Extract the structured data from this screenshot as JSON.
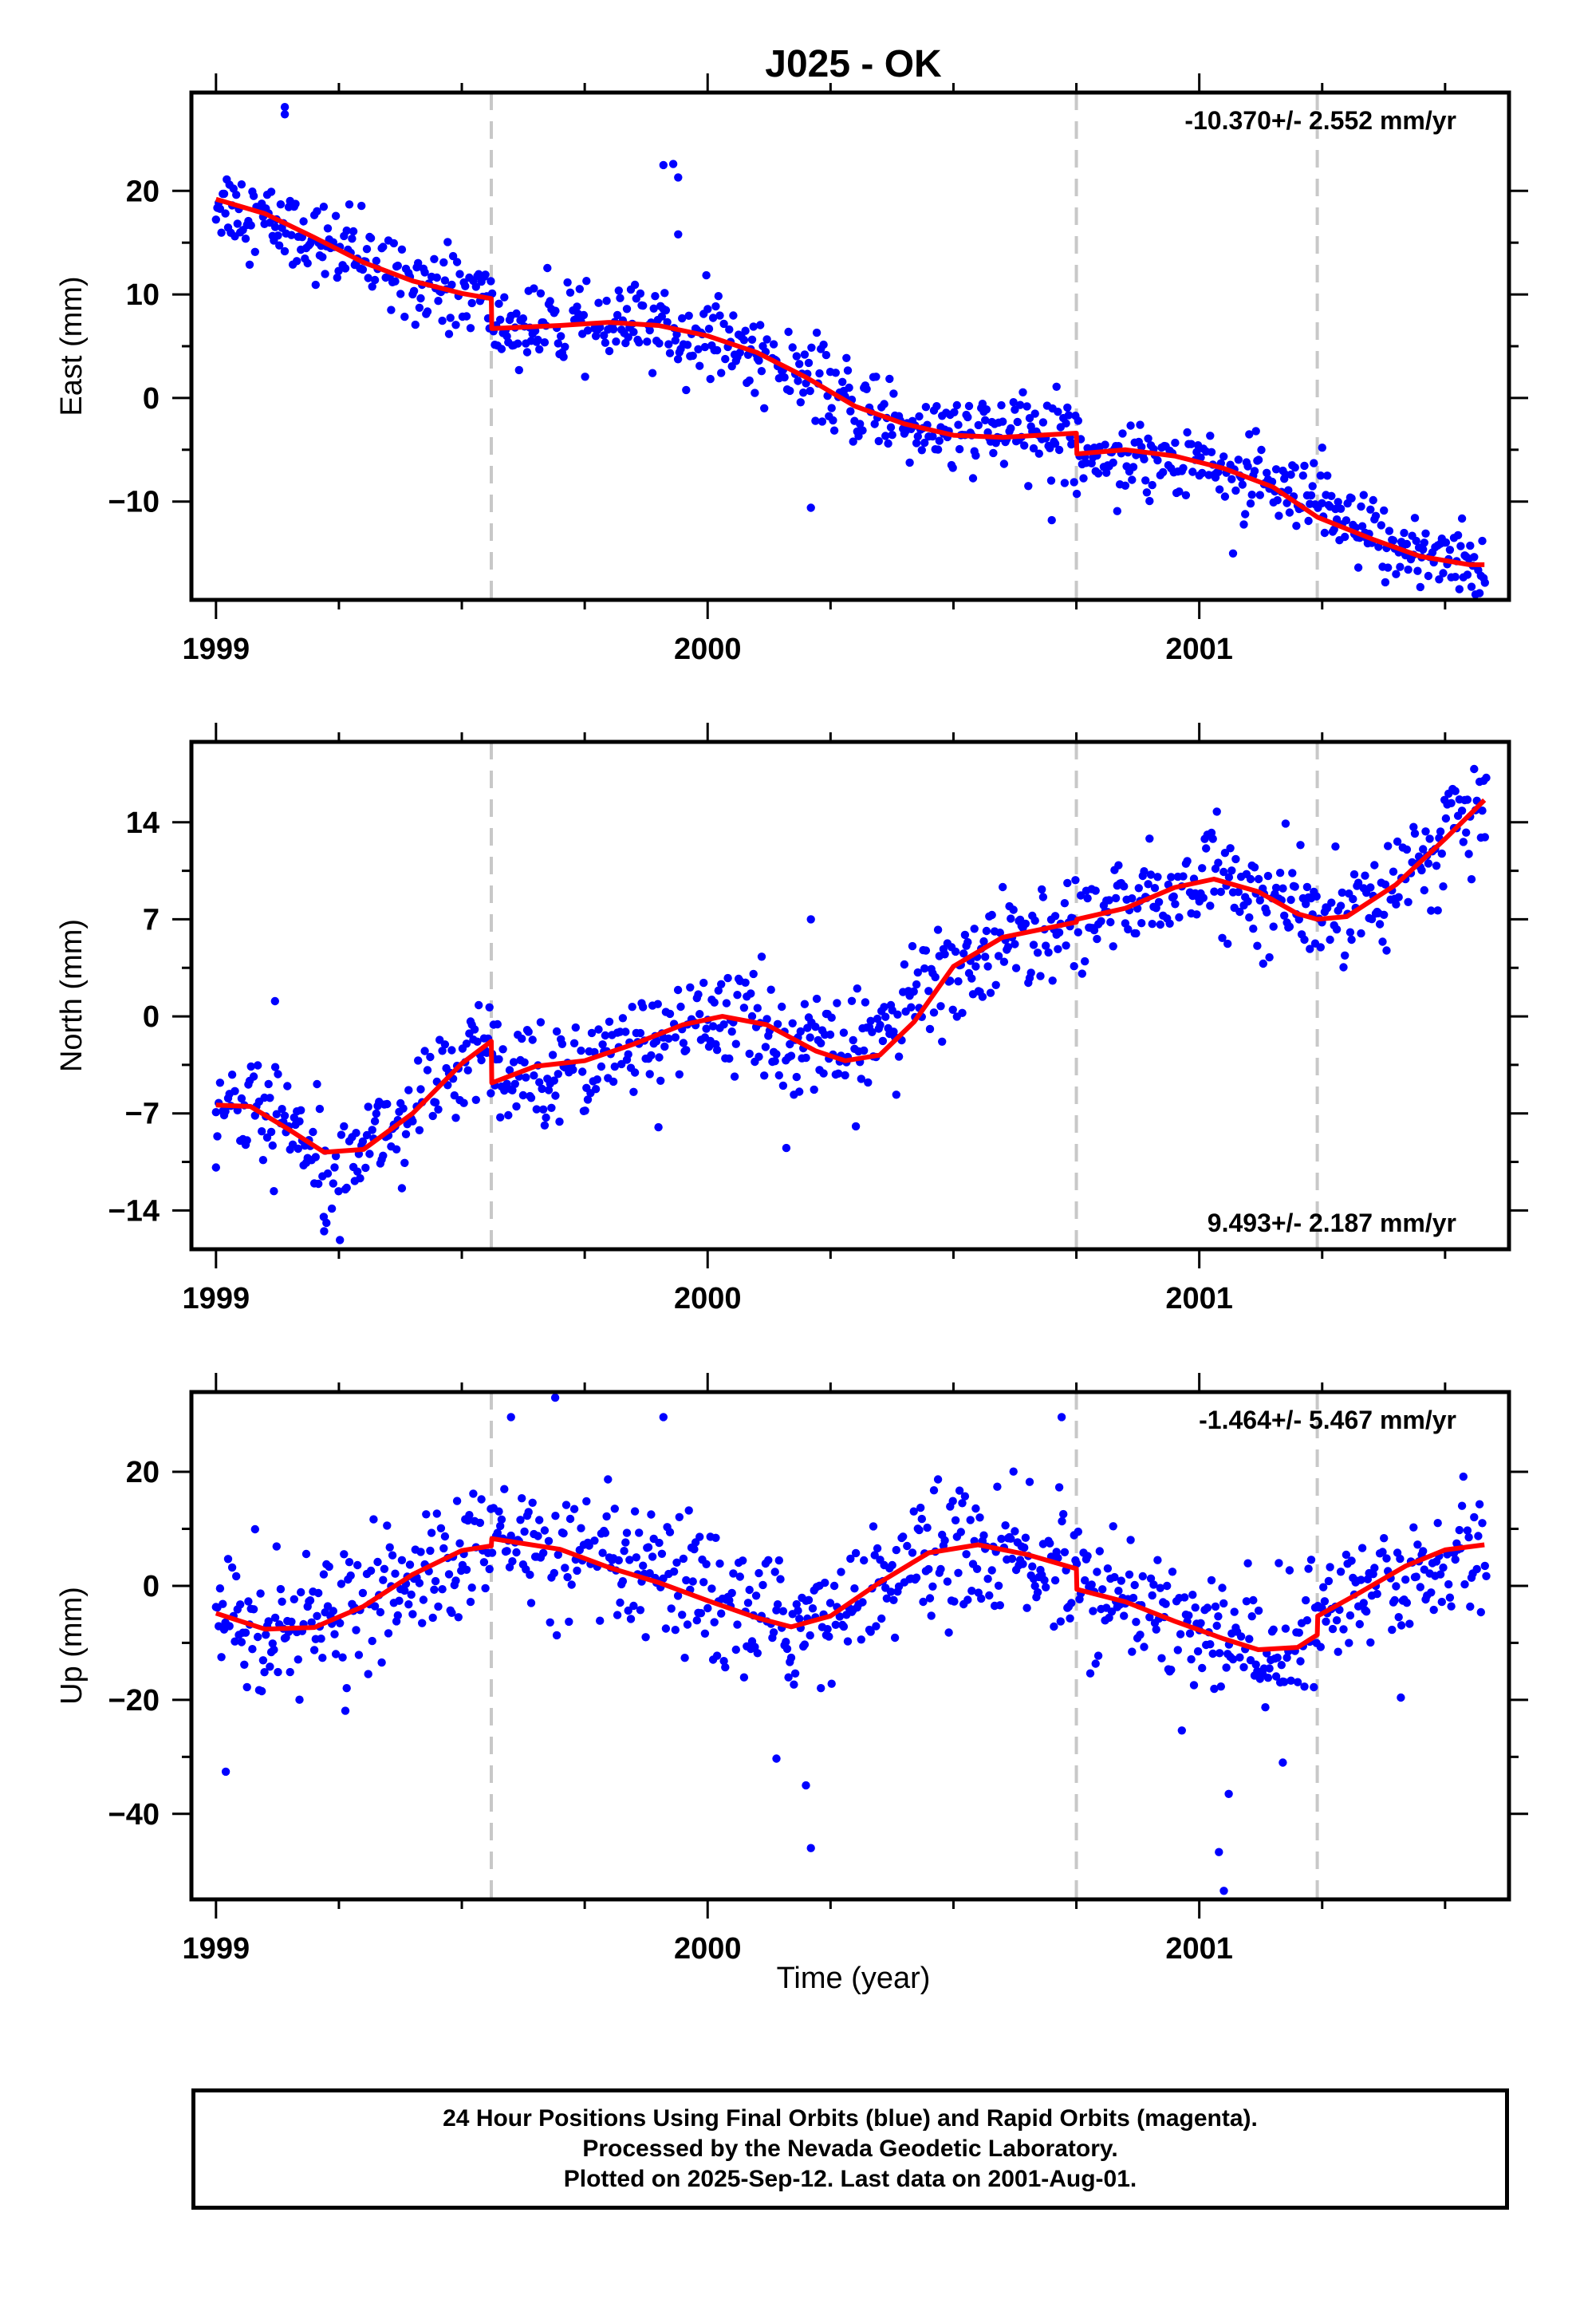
{
  "title": "J025 - OK",
  "xlabel": "Time (year)",
  "footer": {
    "line1": "24 Hour Positions Using Final Orbits (blue) and Rapid Orbits (magenta).",
    "line2": "Processed by the Nevada Geodetic Laboratory.",
    "line3": "Plotted on 2025-Sep-12. Last data on 2001-Aug-01."
  },
  "colors": {
    "points": "#0000ff",
    "model": "#ff0000",
    "steps": "#c8c8c8",
    "frame": "#000000"
  },
  "chart_data": [
    {
      "type": "scatter",
      "panel": "east",
      "ylabel": "East (mm)",
      "rate": "-10.370+/- 2.552 mm/yr",
      "rate_position": "top-right",
      "xlim": [
        1998.95,
        2001.63
      ],
      "ylim": [
        -19.5,
        29.5
      ],
      "xticks": [
        1999,
        2000,
        2001
      ],
      "yticks": [
        -10,
        0,
        10,
        20
      ],
      "steps": [
        1999.56,
        2000.75,
        2001.24
      ],
      "model": [
        [
          1999.0,
          19.2
        ],
        [
          1999.1,
          17.8
        ],
        [
          1999.2,
          15.5
        ],
        [
          1999.3,
          13.1
        ],
        [
          1999.4,
          11.3
        ],
        [
          1999.5,
          10.1
        ],
        [
          1999.56,
          9.6
        ],
        [
          1999.561,
          6.7
        ],
        [
          1999.7,
          7.0
        ],
        [
          1999.8,
          7.3
        ],
        [
          1999.9,
          7.0
        ],
        [
          2000.0,
          6.0
        ],
        [
          2000.1,
          4.4
        ],
        [
          2000.2,
          2.0
        ],
        [
          2000.3,
          -0.8
        ],
        [
          2000.4,
          -2.5
        ],
        [
          2000.5,
          -3.6
        ],
        [
          2000.6,
          -3.8
        ],
        [
          2000.75,
          -3.4
        ],
        [
          2000.751,
          -5.4
        ],
        [
          2000.85,
          -5.0
        ],
        [
          2000.95,
          -5.6
        ],
        [
          2001.05,
          -6.8
        ],
        [
          2001.15,
          -8.6
        ],
        [
          2001.24,
          -11.5
        ],
        [
          2001.35,
          -13.6
        ],
        [
          2001.45,
          -15.3
        ],
        [
          2001.55,
          -16.1
        ],
        [
          2001.58,
          -16.1
        ]
      ],
      "anchors": [
        [
          1999.0,
          19.2
        ],
        [
          1999.25,
          14.3
        ],
        [
          1999.5,
          10.1
        ],
        [
          1999.55,
          9.7
        ],
        [
          1999.57,
          6.8
        ],
        [
          1999.9,
          7.0
        ],
        [
          2000.1,
          4.4
        ],
        [
          2000.3,
          -0.8
        ],
        [
          2000.5,
          -3.6
        ],
        [
          2000.74,
          -3.4
        ],
        [
          2000.76,
          -5.3
        ],
        [
          2001.0,
          -6.0
        ],
        [
          2001.2,
          -10.0
        ],
        [
          2001.4,
          -14.5
        ],
        [
          2001.58,
          -16.1
        ]
      ],
      "noise_sd": 1.9,
      "outliers": [
        [
          1999.14,
          28.1
        ],
        [
          1999.14,
          27.4
        ],
        [
          1999.91,
          22.5
        ],
        [
          1999.93,
          22.6
        ],
        [
          1999.94,
          21.3
        ],
        [
          1999.94,
          15.8
        ],
        [
          2000.21,
          -10.6
        ],
        [
          2000.7,
          -11.8
        ],
        [
          2001.25,
          -4.8
        ]
      ]
    },
    {
      "type": "scatter",
      "panel": "north",
      "ylabel": "North (mm)",
      "rate": "9.493+/- 2.187 mm/yr",
      "rate_position": "bottom-right",
      "xlim": [
        1998.95,
        2001.63
      ],
      "ylim": [
        -16.8,
        19.8
      ],
      "xticks": [
        1999,
        2000,
        2001
      ],
      "yticks": [
        -14,
        -7,
        0,
        7,
        14
      ],
      "steps": [
        1999.56,
        2000.75,
        2001.24
      ],
      "model": [
        [
          1999.0,
          -6.4
        ],
        [
          1999.07,
          -6.5
        ],
        [
          1999.15,
          -8.2
        ],
        [
          1999.22,
          -9.8
        ],
        [
          1999.3,
          -9.6
        ],
        [
          1999.4,
          -7.0
        ],
        [
          1999.5,
          -3.4
        ],
        [
          1999.56,
          -1.8
        ],
        [
          1999.561,
          -4.8
        ],
        [
          1999.65,
          -3.6
        ],
        [
          1999.75,
          -3.2
        ],
        [
          1999.85,
          -2.0
        ],
        [
          1999.95,
          -0.6
        ],
        [
          2000.03,
          0.0
        ],
        [
          2000.12,
          -0.6
        ],
        [
          2000.22,
          -2.5
        ],
        [
          2000.28,
          -3.2
        ],
        [
          2000.35,
          -2.8
        ],
        [
          2000.42,
          -0.4
        ],
        [
          2000.5,
          3.6
        ],
        [
          2000.6,
          5.7
        ],
        [
          2000.75,
          6.8
        ],
        [
          2000.751,
          7.0
        ],
        [
          2000.85,
          7.8
        ],
        [
          2000.95,
          9.3
        ],
        [
          2001.03,
          9.9
        ],
        [
          2001.12,
          9.0
        ],
        [
          2001.2,
          7.4
        ],
        [
          2001.24,
          7.0
        ],
        [
          2001.3,
          7.2
        ],
        [
          2001.4,
          9.5
        ],
        [
          2001.5,
          12.8
        ],
        [
          2001.58,
          15.6
        ]
      ],
      "anchors": [
        [
          1999.0,
          -6.4
        ],
        [
          1999.1,
          -7.0
        ],
        [
          1999.25,
          -10.1
        ],
        [
          1999.4,
          -7.0
        ],
        [
          1999.55,
          -2.0
        ],
        [
          1999.57,
          -4.6
        ],
        [
          1999.8,
          -2.8
        ],
        [
          2000.03,
          0.0
        ],
        [
          2000.28,
          -3.2
        ],
        [
          2000.5,
          3.6
        ],
        [
          2000.74,
          6.7
        ],
        [
          2000.76,
          7.0
        ],
        [
          2001.03,
          9.9
        ],
        [
          2001.24,
          7.0
        ],
        [
          2001.4,
          9.5
        ],
        [
          2001.58,
          15.6
        ]
      ],
      "noise_sd": 1.8,
      "outliers": [
        [
          1999.0,
          -10.9
        ],
        [
          1999.22,
          -15.5
        ],
        [
          1999.9,
          -8.0
        ],
        [
          2000.11,
          4.3
        ],
        [
          2000.21,
          7.0
        ],
        [
          2000.16,
          -9.5
        ],
        [
          2001.13,
          3.8
        ],
        [
          1999.12,
          1.1
        ]
      ]
    },
    {
      "type": "scatter",
      "panel": "up",
      "ylabel": "Up (mm)",
      "rate": "-1.464+/- 5.467 mm/yr",
      "rate_position": "top-right",
      "xlim": [
        1998.95,
        2001.63
      ],
      "ylim": [
        -55,
        34
      ],
      "xticks": [
        1999,
        2000,
        2001
      ],
      "yticks": [
        -40,
        -20,
        0,
        20
      ],
      "steps": [
        1999.56,
        2000.75,
        2001.24
      ],
      "model": [
        [
          1999.0,
          -4.8
        ],
        [
          1999.1,
          -7.6
        ],
        [
          1999.2,
          -7.3
        ],
        [
          1999.3,
          -3.6
        ],
        [
          1999.4,
          2.0
        ],
        [
          1999.5,
          6.2
        ],
        [
          1999.56,
          7.0
        ],
        [
          1999.561,
          8.3
        ],
        [
          1999.7,
          6.4
        ],
        [
          1999.8,
          3.2
        ],
        [
          1999.9,
          0.6
        ],
        [
          2000.0,
          -2.6
        ],
        [
          2000.1,
          -5.6
        ],
        [
          2000.17,
          -7.2
        ],
        [
          2000.25,
          -5.3
        ],
        [
          2000.35,
          0.6
        ],
        [
          2000.45,
          5.8
        ],
        [
          2000.55,
          7.2
        ],
        [
          2000.65,
          5.5
        ],
        [
          2000.75,
          3.0
        ],
        [
          2000.751,
          -0.6
        ],
        [
          2000.85,
          -2.8
        ],
        [
          2000.95,
          -6.2
        ],
        [
          2001.05,
          -9.3
        ],
        [
          2001.12,
          -11.2
        ],
        [
          2001.2,
          -10.8
        ],
        [
          2001.24,
          -8.6
        ],
        [
          2001.241,
          -5.3
        ],
        [
          2001.32,
          -1.5
        ],
        [
          2001.42,
          3.5
        ],
        [
          2001.5,
          6.3
        ],
        [
          2001.58,
          7.2
        ]
      ],
      "anchors": [
        [
          1999.0,
          -4.8
        ],
        [
          1999.15,
          -7.8
        ],
        [
          1999.3,
          -3.6
        ],
        [
          1999.55,
          7.0
        ],
        [
          1999.57,
          8.2
        ],
        [
          1999.9,
          0.6
        ],
        [
          2000.17,
          -7.2
        ],
        [
          2000.5,
          6.8
        ],
        [
          2000.74,
          3.1
        ],
        [
          2000.76,
          -0.8
        ],
        [
          2001.0,
          -7.8
        ],
        [
          2001.15,
          -11.4
        ],
        [
          2001.23,
          -9.0
        ],
        [
          2001.25,
          -5.0
        ],
        [
          2001.58,
          7.2
        ]
      ],
      "noise_sd": 5.5,
      "outliers": [
        [
          1999.02,
          -32.6
        ],
        [
          1999.6,
          29.6
        ],
        [
          1999.69,
          33.0
        ],
        [
          1999.91,
          29.6
        ],
        [
          2000.14,
          -30.3
        ],
        [
          2000.2,
          -35.0
        ],
        [
          2000.21,
          -46.0
        ],
        [
          2001.04,
          -46.7
        ],
        [
          2001.05,
          -53.5
        ],
        [
          2001.06,
          -36.5
        ],
        [
          2001.17,
          -31.0
        ],
        [
          2000.72,
          29.6
        ],
        [
          2001.41,
          -19.6
        ]
      ]
    }
  ]
}
